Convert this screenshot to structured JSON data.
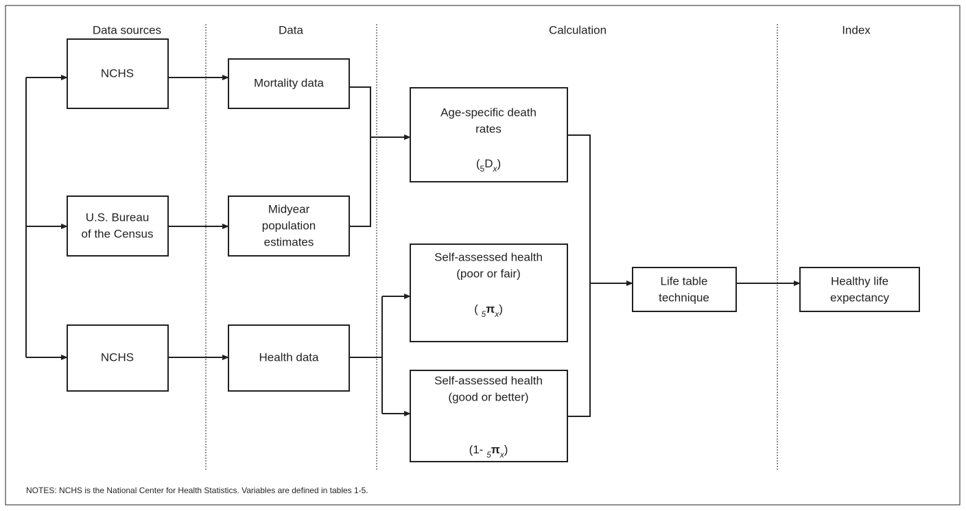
{
  "columns": [
    "Data sources",
    "Data",
    "Calculation",
    "Index"
  ],
  "nodes": [
    {
      "lines": [
        "NCHS"
      ]
    },
    {
      "lines": [
        "U.S. Bureau",
        "of the Census"
      ]
    },
    {
      "lines": [
        "NCHS"
      ]
    },
    {
      "lines": [
        "Mortality data"
      ]
    },
    {
      "lines": [
        "Midyear",
        "population",
        "estimates"
      ]
    },
    {
      "lines": [
        "Health data"
      ]
    },
    {
      "lines": [
        "Age-specific death",
        "rates"
      ],
      "formula": {
        "open": "(",
        "sub": "5",
        "main": "D",
        "index": "x",
        "close": ")"
      }
    },
    {
      "lines": [
        "Self-assessed health",
        "(poor or fair)"
      ],
      "formula": {
        "open": "( ",
        "sub": "5",
        "main": "π",
        "index": "x",
        "close": ")"
      }
    },
    {
      "lines": [
        "Self-assessed health",
        "(good or better)"
      ],
      "formula": {
        "open": "(1- ",
        "sub": "5",
        "main": "π",
        "index": "x",
        "close": ")"
      }
    },
    {
      "lines": [
        "Life table",
        "technique"
      ]
    },
    {
      "lines": [
        "Healthy life",
        "expectancy"
      ]
    }
  ],
  "notes": "NOTES: NCHS is the National Center for Health Statistics. Variables are defined in tables 1-5."
}
